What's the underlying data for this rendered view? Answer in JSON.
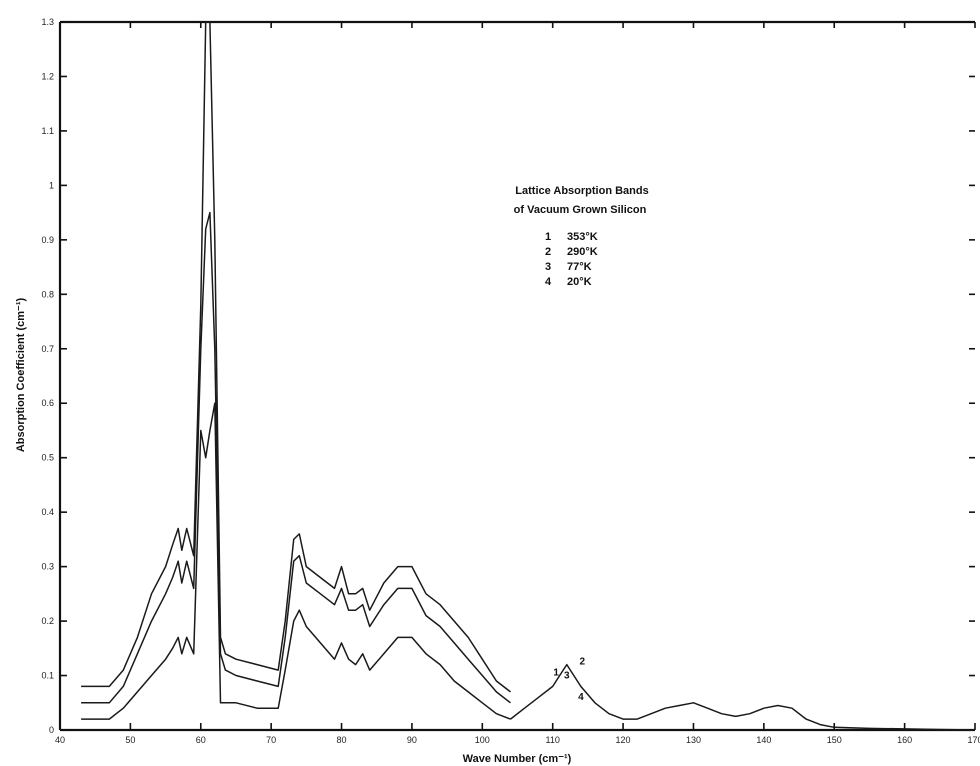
{
  "chart_data": {
    "type": "line",
    "title": "Lattice Absorption Bands",
    "subtitle": "of Vacuum Grown Silicon",
    "xlabel": "Wave Number (cm⁻¹)",
    "ylabel": "Absorption Coefficient (cm⁻¹)",
    "xlim": [
      40,
      170
    ],
    "ylim": [
      0,
      1.3
    ],
    "x_ticks": [
      40,
      50,
      60,
      70,
      80,
      90,
      100,
      110,
      120,
      130,
      140,
      150,
      160,
      170
    ],
    "y_ticks": [
      0,
      0.1,
      0.2,
      0.3,
      0.4,
      0.5,
      0.6,
      0.7,
      0.8,
      0.9,
      1.0,
      1.1,
      1.2,
      1.3
    ],
    "legend": [
      {
        "id": "1",
        "label": "353°K"
      },
      {
        "id": "2",
        "label": "290°K"
      },
      {
        "id": "3",
        "label": "77°K"
      },
      {
        "id": "4",
        "label": "20°K"
      }
    ],
    "legend_position": "top-center",
    "grid": false,
    "series": [
      {
        "name": "1",
        "x": [
          43,
          45,
          47,
          49,
          51,
          53,
          55,
          56,
          56.8,
          57.3,
          58,
          59,
          60,
          60.7,
          61.3,
          62.0,
          62.8,
          63.5,
          65,
          68,
          71,
          72,
          73.2,
          74,
          75,
          77,
          79,
          80,
          81,
          82,
          83,
          84,
          86,
          88,
          90,
          92,
          94,
          96,
          98,
          100,
          102,
          104
        ],
        "y": [
          0.08,
          0.08,
          0.08,
          0.11,
          0.17,
          0.25,
          0.3,
          0.34,
          0.37,
          0.33,
          0.37,
          0.32,
          0.78,
          1.3,
          1.3,
          0.9,
          0.17,
          0.14,
          0.13,
          0.12,
          0.11,
          0.2,
          0.35,
          0.36,
          0.3,
          0.28,
          0.26,
          0.3,
          0.25,
          0.25,
          0.26,
          0.22,
          0.27,
          0.3,
          0.3,
          0.25,
          0.23,
          0.2,
          0.17,
          0.13,
          0.09,
          0.07
        ]
      },
      {
        "name": "2",
        "x": [
          43,
          45,
          47,
          49,
          51,
          53,
          55,
          56,
          56.8,
          57.3,
          58,
          59,
          60,
          60.7,
          61.3,
          62.0,
          62.8,
          63.5,
          65,
          68,
          71,
          72,
          73.2,
          74,
          75,
          77,
          79,
          80,
          81,
          82,
          83,
          84,
          86,
          88,
          90,
          92,
          94,
          96,
          98,
          100,
          102,
          104
        ],
        "y": [
          0.05,
          0.05,
          0.05,
          0.08,
          0.14,
          0.2,
          0.25,
          0.28,
          0.31,
          0.27,
          0.31,
          0.26,
          0.7,
          0.92,
          0.95,
          0.7,
          0.14,
          0.11,
          0.1,
          0.09,
          0.08,
          0.17,
          0.31,
          0.32,
          0.27,
          0.25,
          0.23,
          0.26,
          0.22,
          0.22,
          0.23,
          0.19,
          0.23,
          0.26,
          0.26,
          0.21,
          0.19,
          0.16,
          0.13,
          0.1,
          0.07,
          0.05
        ]
      },
      {
        "name": "3",
        "x": [
          43,
          45,
          47,
          49,
          51,
          53,
          55,
          56,
          56.8,
          57.3,
          58,
          59,
          60,
          60.7,
          61.3,
          62.0,
          62.8,
          63.5,
          65,
          68,
          71,
          72,
          73.2,
          74,
          75,
          77,
          79,
          80,
          81,
          82,
          83,
          84,
          86,
          88,
          90,
          92,
          94,
          96,
          98,
          100,
          102,
          104
        ],
        "y": [
          0.02,
          0.02,
          0.02,
          0.04,
          0.07,
          0.1,
          0.13,
          0.15,
          0.17,
          0.14,
          0.17,
          0.14,
          0.55,
          0.5,
          0.55,
          0.6,
          0.05,
          0.05,
          0.05,
          0.04,
          0.04,
          0.11,
          0.2,
          0.22,
          0.19,
          0.16,
          0.13,
          0.16,
          0.13,
          0.12,
          0.14,
          0.11,
          0.14,
          0.17,
          0.17,
          0.14,
          0.12,
          0.09,
          0.07,
          0.05,
          0.03,
          0.02
        ]
      },
      {
        "name": "4",
        "x": [
          104,
          106,
          108,
          110,
          111,
          112,
          113,
          114,
          116,
          118,
          120,
          122,
          124,
          126,
          128,
          130,
          132,
          134,
          136,
          138,
          140,
          142,
          144,
          146,
          148,
          150,
          155,
          160,
          165,
          170
        ],
        "y": [
          0.02,
          0.04,
          0.06,
          0.08,
          0.1,
          0.12,
          0.1,
          0.08,
          0.05,
          0.03,
          0.02,
          0.02,
          0.03,
          0.04,
          0.045,
          0.05,
          0.04,
          0.03,
          0.025,
          0.03,
          0.04,
          0.045,
          0.04,
          0.02,
          0.01,
          0.005,
          0.003,
          0.002,
          0.001,
          0.0
        ]
      }
    ],
    "annotations": [
      "1",
      "2",
      "3",
      "4"
    ]
  }
}
